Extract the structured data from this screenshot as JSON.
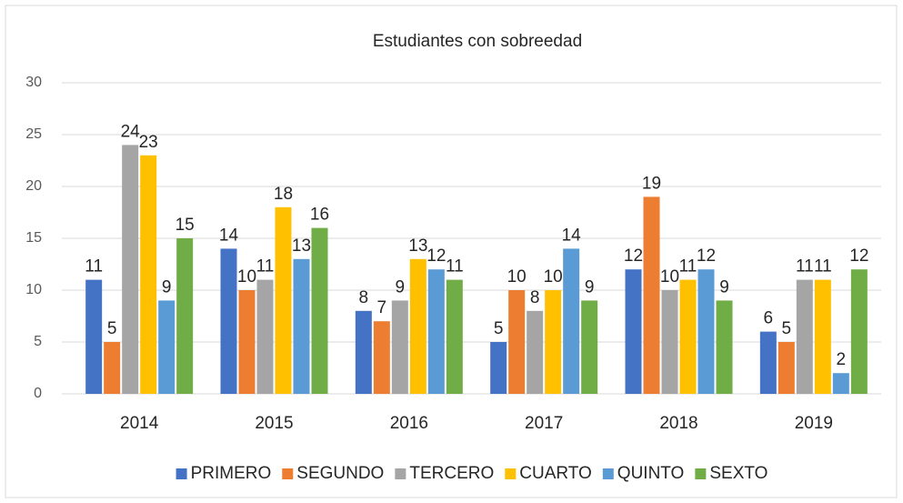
{
  "chart_data": {
    "type": "bar",
    "title": "Estudiantes con sobreedad",
    "categories": [
      "2014",
      "2015",
      "2016",
      "2017",
      "2018",
      "2019"
    ],
    "series": [
      {
        "name": "PRIMERO",
        "color": "#4472c4",
        "values": [
          11,
          14,
          8,
          5,
          12,
          6
        ]
      },
      {
        "name": "SEGUNDO",
        "color": "#ed7d31",
        "values": [
          5,
          10,
          7,
          10,
          19,
          5
        ]
      },
      {
        "name": "TERCERO",
        "color": "#a5a5a5",
        "values": [
          24,
          11,
          9,
          8,
          10,
          11
        ]
      },
      {
        "name": "CUARTO",
        "color": "#ffc000",
        "values": [
          23,
          18,
          13,
          10,
          11,
          11
        ]
      },
      {
        "name": "QUINTO",
        "color": "#5b9bd5",
        "values": [
          9,
          13,
          12,
          14,
          12,
          2
        ]
      },
      {
        "name": "SEXTO",
        "color": "#70ad47",
        "values": [
          15,
          16,
          11,
          9,
          9,
          12
        ]
      }
    ],
    "ylim": [
      0,
      30
    ],
    "yticks": [
      0,
      5,
      10,
      15,
      20,
      25,
      30
    ],
    "grid": true,
    "legend": "bottom"
  }
}
